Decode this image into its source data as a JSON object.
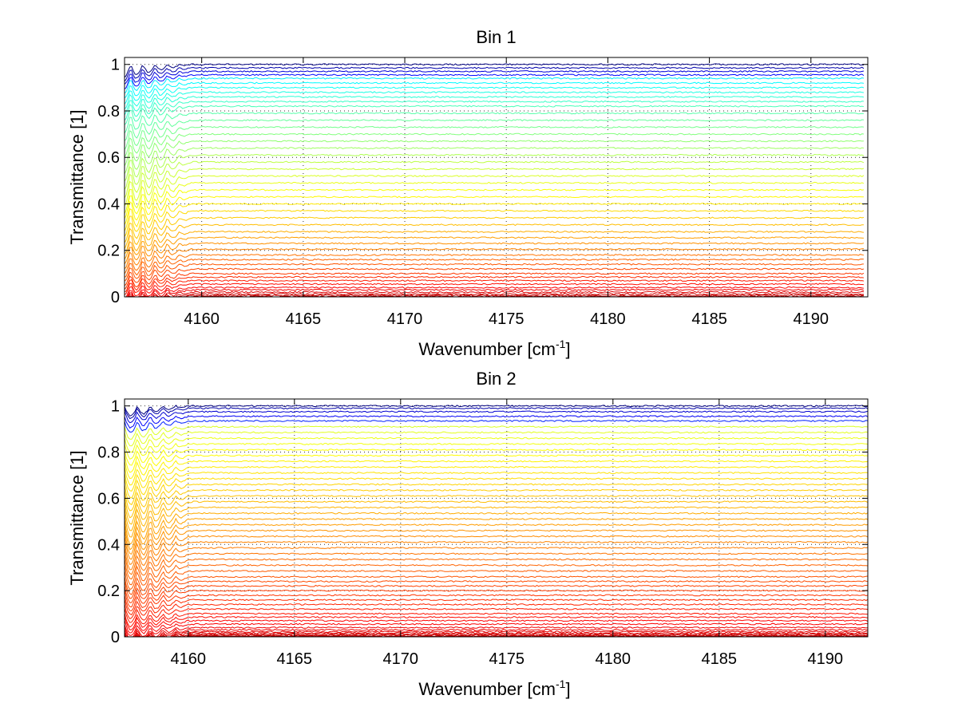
{
  "chart_data": [
    {
      "type": "line",
      "title": "Bin 1",
      "xlabel": "Wavenumber [cm",
      "xlabel_sup": "-1",
      "xlabel_close": "]",
      "ylabel": "Transmittance [1]",
      "xlim": [
        4156.2,
        4192.8
      ],
      "ylim": [
        0,
        1.03
      ],
      "xticks": [
        4160,
        4165,
        4170,
        4175,
        4180,
        4185,
        4190
      ],
      "xtick_labels": [
        "4160",
        "4165",
        "4170",
        "4175",
        "4180",
        "4185",
        "4190"
      ],
      "yticks": [
        0,
        0.2,
        0.4,
        0.6,
        0.8,
        1
      ],
      "ytick_labels": [
        "0",
        "0.2",
        "0.4",
        "0.6",
        "0.8",
        "1"
      ],
      "grid": "dotted",
      "colormap": "jet",
      "series_count": 46,
      "baseline_levels": [
        1.0,
        0.985,
        0.97,
        0.955,
        0.94,
        0.92,
        0.9,
        0.88,
        0.86,
        0.84,
        0.82,
        0.79,
        0.76,
        0.73,
        0.7,
        0.67,
        0.64,
        0.61,
        0.58,
        0.55,
        0.52,
        0.49,
        0.46,
        0.43,
        0.4,
        0.37,
        0.34,
        0.31,
        0.28,
        0.255,
        0.23,
        0.205,
        0.18,
        0.16,
        0.14,
        0.12,
        0.1,
        0.085,
        0.07,
        0.055,
        0.04,
        0.03,
        0.02,
        0.012,
        0.006,
        0.002
      ],
      "feature_region": [
        4156.5,
        4159.5
      ],
      "x_end": 4192.6,
      "color_offset": 0.3
    },
    {
      "type": "line",
      "title": "Bin 2",
      "xlabel": "Wavenumber [cm",
      "xlabel_sup": "-1",
      "xlabel_close": "]",
      "ylabel": "Transmittance [1]",
      "xlim": [
        4157.0,
        4192.0
      ],
      "ylim": [
        0,
        1.03
      ],
      "xticks": [
        4160,
        4165,
        4170,
        4175,
        4180,
        4185,
        4190
      ],
      "xtick_labels": [
        "4160",
        "4165",
        "4170",
        "4175",
        "4180",
        "4185",
        "4190"
      ],
      "yticks": [
        0,
        0.2,
        0.4,
        0.6,
        0.8,
        1
      ],
      "ytick_labels": [
        "0",
        "0.2",
        "0.4",
        "0.6",
        "0.8",
        "1"
      ],
      "grid": "dotted",
      "colormap": "jet",
      "series_count": 52,
      "baseline_levels": [
        1.0,
        0.99,
        0.975,
        0.955,
        0.935,
        0.91,
        0.885,
        0.86,
        0.835,
        0.81,
        0.785,
        0.76,
        0.735,
        0.71,
        0.685,
        0.66,
        0.635,
        0.61,
        0.585,
        0.56,
        0.535,
        0.51,
        0.485,
        0.46,
        0.435,
        0.41,
        0.385,
        0.36,
        0.335,
        0.31,
        0.285,
        0.26,
        0.24,
        0.22,
        0.2,
        0.18,
        0.16,
        0.14,
        0.12,
        0.1,
        0.085,
        0.07,
        0.055,
        0.04,
        0.03,
        0.022,
        0.016,
        0.011,
        0.007,
        0.004,
        0.002,
        0.001
      ],
      "feature_region": [
        4157.0,
        4160.2
      ],
      "x_end": 4192.0,
      "color_offset": 0.55
    }
  ]
}
